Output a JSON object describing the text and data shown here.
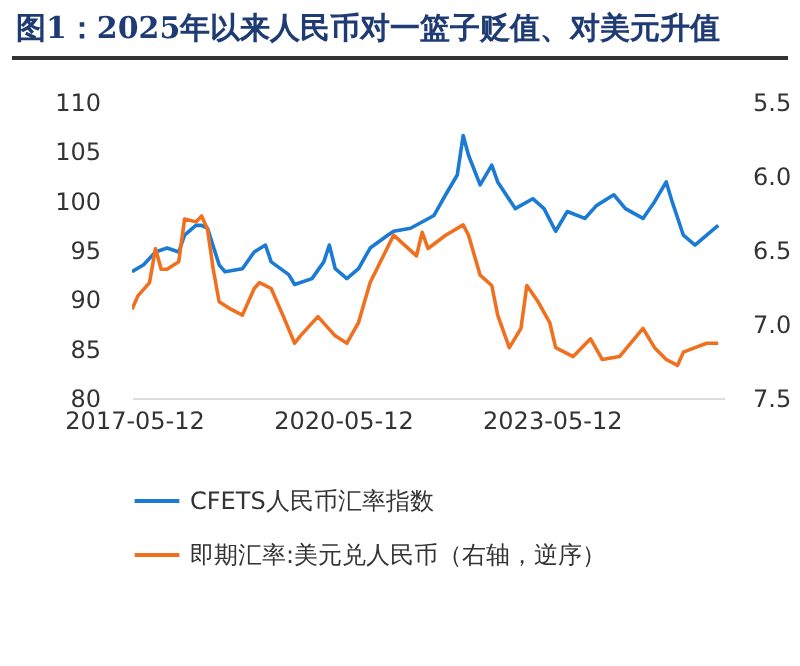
{
  "chart_data": {
    "type": "line",
    "title": "图1：2025年以来人民币对一篮子贬值、对美元升值",
    "xlim": [
      "2017-05-01",
      "2025-10-31"
    ],
    "xticks": [
      "2017-05-12",
      "2020-05-12",
      "2023-05-12"
    ],
    "ylim": [
      80,
      110
    ],
    "yticks": [
      80,
      85,
      90,
      95,
      100,
      105,
      110
    ],
    "y2lim": [
      7.5,
      5.5
    ],
    "y2ticks": [
      5.5,
      {
        "value": 6,
        "label": "6.0"
      },
      6.5,
      {
        "value": 7,
        "label": "7.0"
      },
      7.5
    ],
    "legend": "bottom",
    "series": [
      {
        "name": "CFETS人民币汇率指数",
        "color": "#1a7ad4",
        "x": [
          "2017-05",
          "2017-07",
          "2017-09",
          "2017-11",
          "2018-01",
          "2018-02",
          "2018-04",
          "2018-05",
          "2018-06",
          "2018-08",
          "2018-09",
          "2018-12",
          "2019-02",
          "2019-04",
          "2019-05",
          "2019-08",
          "2019-09",
          "2019-12",
          "2020-02",
          "2020-03",
          "2020-04",
          "2020-06",
          "2020-08",
          "2020-10",
          "2021-01",
          "2021-02",
          "2021-05",
          "2021-09",
          "2021-11",
          "2022-01",
          "2022-02",
          "2022-03",
          "2022-05",
          "2022-07",
          "2022-08",
          "2022-11",
          "2023-02",
          "2023-04",
          "2023-06",
          "2023-08",
          "2023-11",
          "2024-01",
          "2024-04",
          "2024-06",
          "2024-09",
          "2024-11",
          "2025-01",
          "2025-02",
          "2025-04",
          "2025-06",
          "2025-08",
          "2025-10"
        ],
        "values": [
          92.8,
          93.5,
          94.8,
          95.2,
          94.8,
          96.5,
          97.5,
          97.5,
          97.2,
          93.5,
          92.8,
          93.1,
          94.8,
          95.5,
          93.8,
          92.5,
          91.5,
          92.1,
          93.8,
          95.5,
          93.1,
          92.1,
          93.1,
          95.2,
          96.5,
          96.9,
          97.2,
          98.5,
          100.6,
          102.6,
          106.6,
          104.6,
          101.6,
          103.6,
          101.9,
          99.2,
          100.2,
          99.2,
          96.9,
          98.9,
          98.2,
          99.5,
          100.6,
          99.2,
          98.2,
          99.9,
          101.9,
          99.9,
          96.5,
          95.5,
          96.5,
          97.5
        ]
      },
      {
        "name": "即期汇率:美元兑人民币（右轴，逆序）",
        "color": "#f07020",
        "axis": "y2",
        "x": [
          "2017-05",
          "2017-06",
          "2017-08",
          "2017-09",
          "2017-10",
          "2017-11",
          "2018-01",
          "2018-02",
          "2018-04",
          "2018-05",
          "2018-06",
          "2018-07",
          "2018-08",
          "2018-10",
          "2018-12",
          "2019-02",
          "2019-03",
          "2019-05",
          "2019-07",
          "2019-09",
          "2019-10",
          "2020-01",
          "2020-04",
          "2020-06",
          "2020-08",
          "2020-10",
          "2021-02",
          "2021-06",
          "2021-07",
          "2021-08",
          "2021-11",
          "2022-02",
          "2022-03",
          "2022-05",
          "2022-07",
          "2022-08",
          "2022-10",
          "2022-12",
          "2023-01",
          "2023-03",
          "2023-05",
          "2023-06",
          "2023-09",
          "2023-12",
          "2024-02",
          "2024-05",
          "2024-09",
          "2024-11",
          "2025-01",
          "2025-03",
          "2025-04",
          "2025-06",
          "2025-08",
          "2025-10"
        ],
        "values": [
          6.9,
          6.81,
          6.72,
          6.49,
          6.63,
          6.63,
          6.58,
          6.29,
          6.31,
          6.27,
          6.36,
          6.63,
          6.85,
          6.9,
          6.94,
          6.76,
          6.72,
          6.76,
          6.94,
          7.13,
          7.08,
          6.95,
          7.08,
          7.13,
          6.99,
          6.72,
          6.4,
          6.54,
          6.38,
          6.49,
          6.4,
          6.33,
          6.4,
          6.67,
          6.74,
          6.94,
          7.16,
          7.03,
          6.74,
          6.85,
          6.99,
          7.16,
          7.22,
          7.1,
          7.24,
          7.22,
          7.03,
          7.16,
          7.24,
          7.28,
          7.19,
          7.16,
          7.13,
          7.13
        ]
      }
    ]
  }
}
